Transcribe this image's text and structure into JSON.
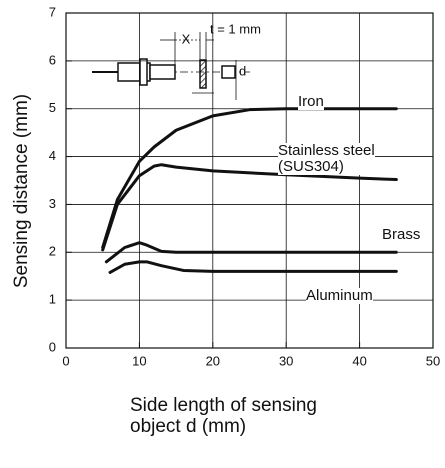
{
  "chart_data": {
    "type": "line",
    "x_label": "Side length of sensing object d (mm)",
    "y_label": "Sensing distance  (mm)",
    "xlim": [
      0,
      50
    ],
    "xticks": [
      0,
      10,
      20,
      30,
      40,
      50
    ],
    "ylim": [
      0,
      7
    ],
    "yticks": [
      0,
      1,
      2,
      3,
      4,
      5,
      6,
      7
    ],
    "grid": true,
    "series": [
      {
        "name": "Iron",
        "color": "#111111",
        "x": [
          5,
          7,
          10,
          12,
          15,
          20,
          25,
          30,
          35,
          40,
          45
        ],
        "values": [
          2.1,
          3.1,
          3.9,
          4.2,
          4.55,
          4.85,
          4.98,
          5,
          5,
          5,
          5
        ]
      },
      {
        "name": "Stainless steel\n(SUS304)",
        "color": "#111111",
        "x": [
          5,
          7,
          10,
          12,
          13,
          15,
          20,
          30,
          40,
          45
        ],
        "values": [
          2.05,
          3.0,
          3.6,
          3.8,
          3.83,
          3.78,
          3.7,
          3.62,
          3.55,
          3.52
        ]
      },
      {
        "name": "Brass",
        "color": "#111111",
        "x": [
          5.5,
          8,
          10,
          11,
          13,
          15,
          20,
          30,
          40,
          45
        ],
        "values": [
          1.8,
          2.1,
          2.2,
          2.15,
          2.02,
          2,
          2,
          2,
          2,
          2
        ]
      },
      {
        "name": "Aluminum",
        "color": "#111111",
        "x": [
          6,
          8,
          10,
          11,
          13,
          16,
          20,
          30,
          45
        ],
        "values": [
          1.58,
          1.75,
          1.8,
          1.8,
          1.72,
          1.62,
          1.6,
          1.6,
          1.6
        ]
      }
    ]
  },
  "inset": {
    "labels": [
      "X",
      "t = 1 mm",
      "d"
    ]
  }
}
